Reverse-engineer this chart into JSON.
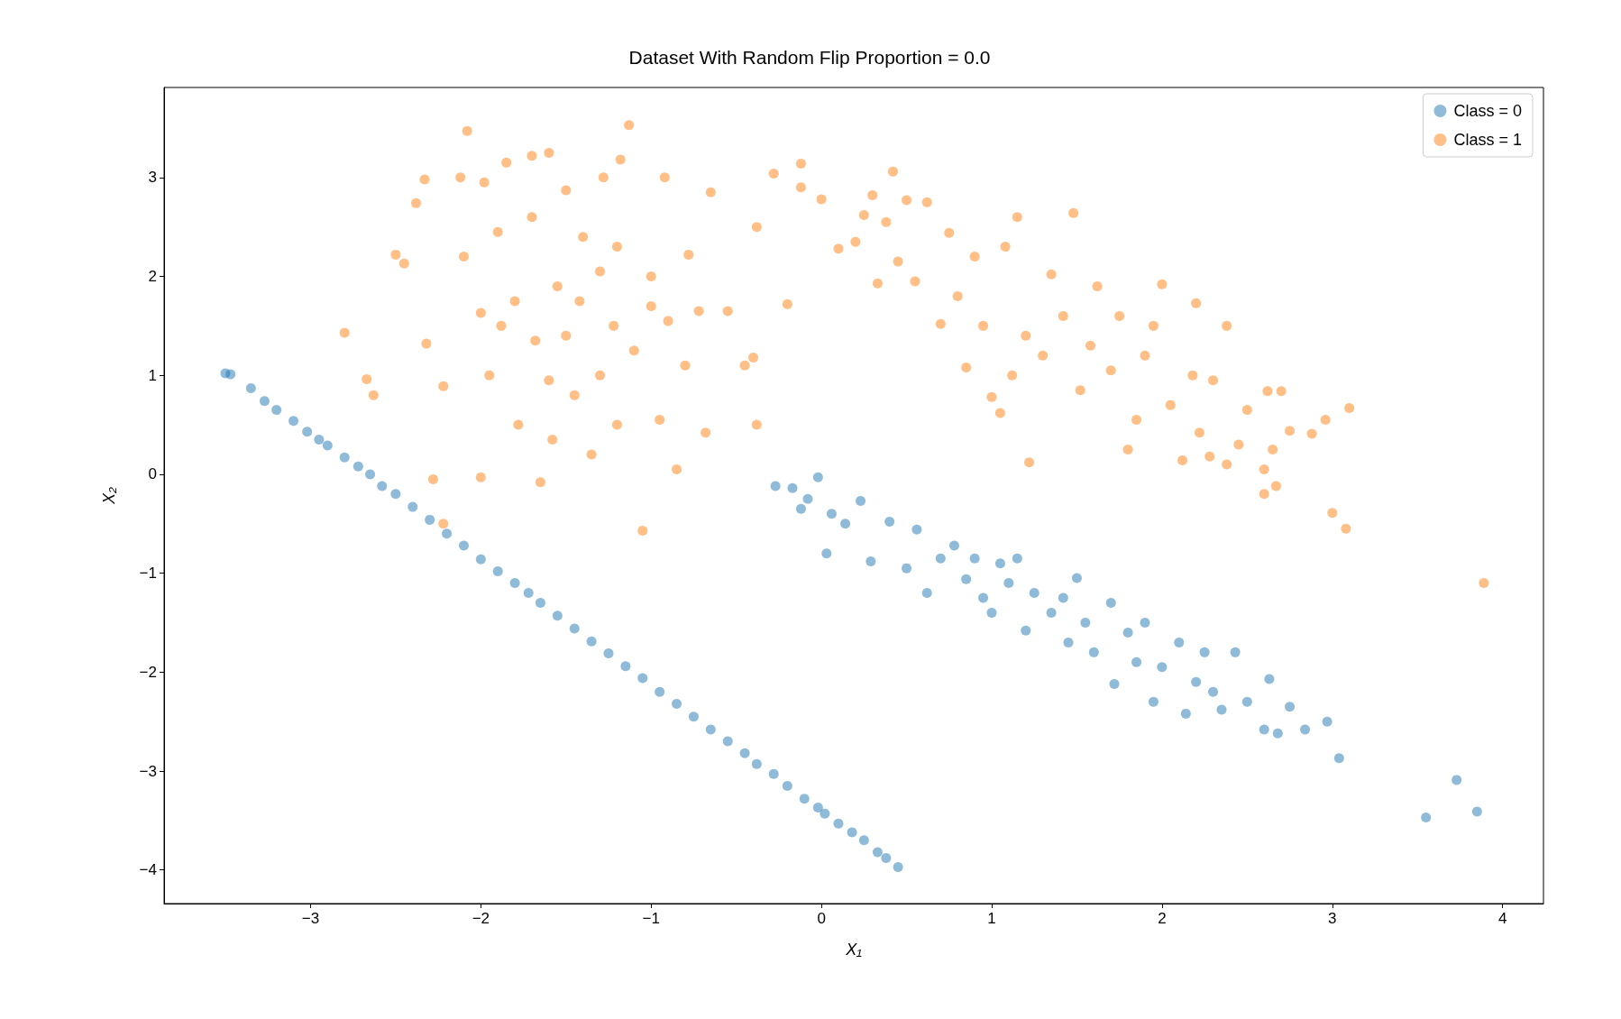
{
  "chart_data": {
    "type": "scatter",
    "title": "Dataset With Random Flip Proportion = 0.0",
    "xlabel": "X₁",
    "ylabel": "X₂",
    "xlim": [
      -3.86,
      4.24
    ],
    "ylim": [
      -4.34,
      3.91
    ],
    "xticks": [
      -3,
      -2,
      -1,
      0,
      1,
      2,
      3,
      4
    ],
    "yticks": [
      -4,
      -3,
      -2,
      -1,
      0,
      1,
      2,
      3
    ],
    "grid": false,
    "legend": "top right",
    "marker": "circle",
    "series": [
      {
        "name": "Class = 0",
        "color": "#1f77b4",
        "x": [
          -3.5,
          -3.47,
          -3.35,
          -3.27,
          -3.2,
          -3.1,
          -3.02,
          -2.95,
          -2.9,
          -2.8,
          -2.72,
          -2.65,
          -2.58,
          -2.5,
          -2.4,
          -2.3,
          -2.2,
          -2.1,
          -2.0,
          -1.9,
          -1.8,
          -1.72,
          -1.65,
          -1.55,
          -1.45,
          -1.35,
          -1.25,
          -1.15,
          -1.05,
          -0.95,
          -0.85,
          -0.75,
          -0.65,
          -0.55,
          -0.45,
          -0.38,
          -0.28,
          -0.2,
          -0.1,
          -0.02,
          0.02,
          0.1,
          0.18,
          0.25,
          0.33,
          0.38,
          0.45,
          -0.27,
          -0.17,
          -0.12,
          -0.08,
          -0.02,
          0.03,
          0.06,
          0.14,
          0.23,
          0.29,
          0.4,
          0.5,
          0.56,
          0.62,
          0.7,
          0.78,
          0.85,
          0.9,
          0.95,
          1.0,
          1.05,
          1.1,
          1.15,
          1.2,
          1.25,
          1.35,
          1.42,
          1.45,
          1.5,
          1.55,
          1.6,
          1.7,
          1.72,
          1.8,
          1.85,
          1.9,
          1.95,
          2.0,
          2.1,
          2.14,
          2.2,
          2.25,
          2.3,
          2.35,
          2.43,
          2.5,
          2.6,
          2.63,
          2.68,
          2.75,
          2.84,
          2.97,
          3.04,
          3.55,
          3.73,
          3.85
        ],
        "values": [
          1.02,
          1.01,
          0.87,
          0.74,
          0.65,
          0.54,
          0.43,
          0.35,
          0.29,
          0.17,
          0.08,
          0.0,
          -0.12,
          -0.2,
          -0.33,
          -0.46,
          -0.6,
          -0.72,
          -0.86,
          -0.98,
          -1.1,
          -1.2,
          -1.3,
          -1.43,
          -1.56,
          -1.69,
          -1.81,
          -1.94,
          -2.06,
          -2.2,
          -2.32,
          -2.45,
          -2.58,
          -2.7,
          -2.82,
          -2.93,
          -3.03,
          -3.15,
          -3.28,
          -3.37,
          -3.43,
          -3.53,
          -3.62,
          -3.7,
          -3.82,
          -3.88,
          -3.97,
          -0.12,
          -0.14,
          -0.35,
          -0.25,
          -0.03,
          -0.8,
          -0.4,
          -0.5,
          -0.27,
          -0.88,
          -0.48,
          -0.95,
          -0.56,
          -1.2,
          -0.85,
          -0.72,
          -1.06,
          -0.85,
          -1.25,
          -1.4,
          -0.9,
          -1.1,
          -0.85,
          -1.58,
          -1.2,
          -1.4,
          -1.25,
          -1.7,
          -1.05,
          -1.5,
          -1.8,
          -1.3,
          -2.12,
          -1.6,
          -1.9,
          -1.5,
          -2.3,
          -1.95,
          -1.7,
          -2.42,
          -2.1,
          -1.8,
          -2.2,
          -2.38,
          -1.8,
          -2.3,
          -2.58,
          -2.07,
          -2.62,
          -2.35,
          -2.58,
          -2.5,
          -2.87,
          -3.47,
          -3.09,
          -3.41
        ]
      },
      {
        "name": "Class = 1",
        "color": "#ff7f0e",
        "x": [
          -2.8,
          -2.67,
          -2.63,
          -2.5,
          -2.45,
          -2.38,
          -2.33,
          -2.32,
          -2.28,
          -2.22,
          -2.22,
          -2.12,
          -2.1,
          -2.08,
          -2.0,
          -2.0,
          -1.98,
          -1.95,
          -1.9,
          -1.85,
          -1.8,
          -1.78,
          -1.7,
          -1.68,
          -1.65,
          -1.6,
          -1.58,
          -1.55,
          -1.5,
          -1.45,
          -1.42,
          -1.4,
          -1.35,
          -1.3,
          -1.28,
          -1.22,
          -1.2,
          -1.18,
          -1.13,
          -1.1,
          -1.05,
          -1.0,
          -0.95,
          -0.92,
          -0.9,
          -0.85,
          -0.8,
          -0.78,
          -0.72,
          -0.68,
          -0.65,
          -0.55,
          -0.45,
          -0.4,
          -0.38,
          -0.38,
          -1.7,
          -1.5,
          -1.3,
          -1.2,
          -1.0,
          -1.6,
          -1.88,
          -0.28,
          -0.2,
          -0.12,
          -0.12,
          0.0,
          0.1,
          0.2,
          0.25,
          0.3,
          0.33,
          0.38,
          0.42,
          0.45,
          0.5,
          0.55,
          0.62,
          0.7,
          0.75,
          0.8,
          0.85,
          0.9,
          0.95,
          1.0,
          1.05,
          1.08,
          1.12,
          1.15,
          1.2,
          1.22,
          1.3,
          1.35,
          1.42,
          1.48,
          1.52,
          1.58,
          1.62,
          1.7,
          1.75,
          1.8,
          1.85,
          1.9,
          1.95,
          2.0,
          2.05,
          2.12,
          2.18,
          2.2,
          2.22,
          2.28,
          2.3,
          2.38,
          2.38,
          2.45,
          2.5,
          2.6,
          2.6,
          2.62,
          2.65,
          2.67,
          2.7,
          2.75,
          2.88,
          2.96,
          3.0,
          3.08,
          3.1,
          3.89
        ],
        "values": [
          1.43,
          0.96,
          0.8,
          2.22,
          2.13,
          2.74,
          2.98,
          1.32,
          -0.05,
          0.89,
          -0.5,
          3.0,
          2.2,
          3.47,
          -0.03,
          1.63,
          2.95,
          1.0,
          2.45,
          3.15,
          1.75,
          0.5,
          3.22,
          1.35,
          -0.08,
          3.25,
          0.35,
          1.9,
          2.87,
          0.8,
          1.75,
          2.4,
          0.2,
          2.05,
          3.0,
          1.5,
          0.5,
          3.18,
          3.53,
          1.25,
          -0.57,
          2.0,
          0.55,
          3.0,
          1.55,
          0.05,
          1.1,
          2.22,
          1.65,
          0.42,
          2.85,
          1.65,
          1.1,
          1.18,
          2.5,
          0.5,
          2.6,
          1.4,
          1.0,
          2.3,
          1.7,
          0.95,
          1.5,
          3.04,
          1.72,
          2.9,
          3.14,
          2.78,
          2.28,
          2.35,
          2.62,
          2.82,
          1.93,
          2.55,
          3.06,
          2.15,
          2.77,
          1.95,
          2.75,
          1.52,
          2.44,
          1.8,
          1.08,
          2.2,
          1.5,
          0.78,
          0.62,
          2.3,
          1.0,
          2.6,
          1.4,
          0.12,
          1.2,
          2.02,
          1.6,
          2.64,
          0.85,
          1.3,
          1.9,
          1.05,
          1.6,
          0.25,
          0.55,
          1.2,
          1.5,
          1.92,
          0.7,
          0.14,
          1.0,
          1.73,
          0.42,
          0.18,
          0.95,
          0.1,
          1.5,
          0.3,
          0.65,
          0.05,
          -0.2,
          0.84,
          0.25,
          -0.12,
          0.84,
          0.44,
          0.41,
          0.55,
          -0.39,
          -0.55,
          0.67,
          -1.1
        ]
      }
    ]
  }
}
